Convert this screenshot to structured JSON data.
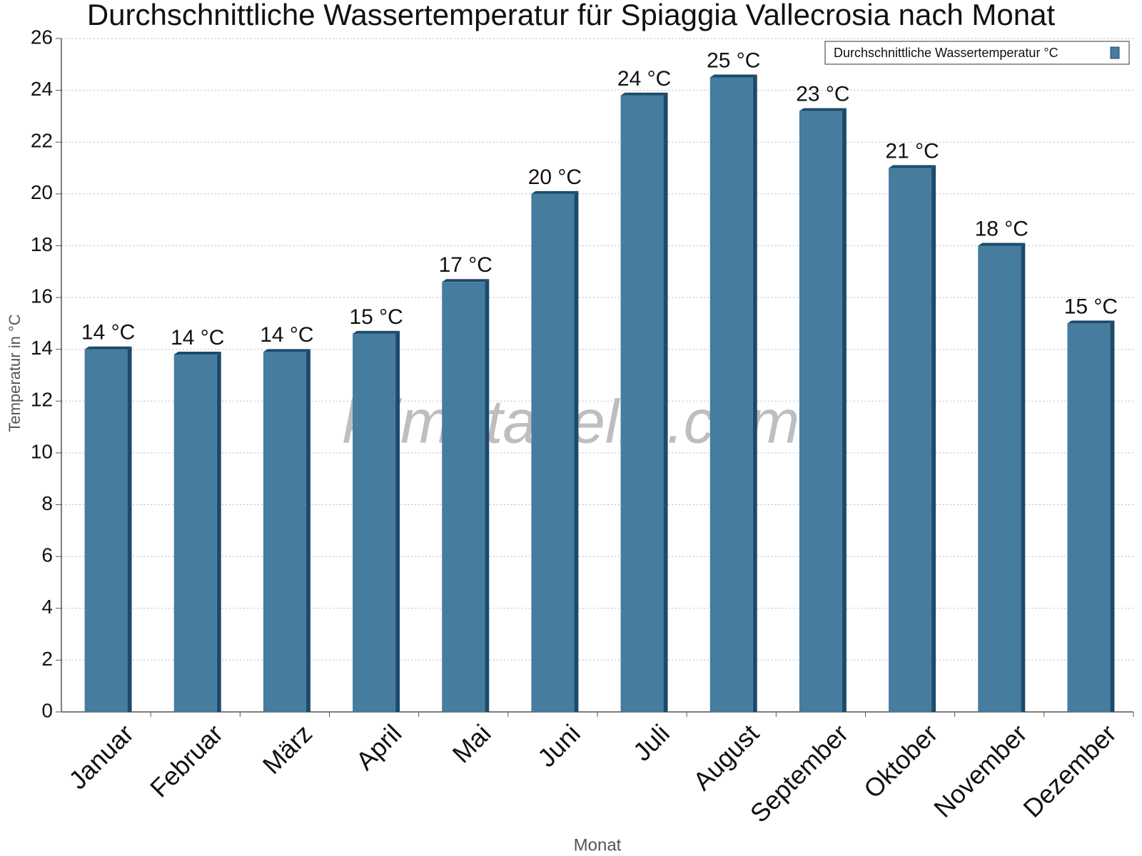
{
  "chart_data": {
    "type": "bar",
    "title": "Durchschnittliche Wassertemperatur für Spiaggia Vallecrosia nach Monat",
    "x_label": "Monat",
    "y_label": "Temperatur in °C",
    "watermark": "klimatabelle.com",
    "categories": [
      "Januar",
      "Februar",
      "März",
      "April",
      "Mai",
      "Juni",
      "Juli",
      "August",
      "September",
      "Oktober",
      "November",
      "Dezember"
    ],
    "series": [
      {
        "name": "Durchschnittliche Wassertemperatur °C",
        "color": "#467c9e",
        "values": [
          14.0,
          13.8,
          13.9,
          14.6,
          16.6,
          20.0,
          23.8,
          24.5,
          23.2,
          21.0,
          18.0,
          15.0
        ],
        "value_labels": [
          "14 °C",
          "14 °C",
          "14 °C",
          "15 °C",
          "17 °C",
          "20 °C",
          "24 °C",
          "25 °C",
          "23 °C",
          "21 °C",
          "18 °C",
          "15 °C"
        ]
      }
    ],
    "ylim": [
      0,
      26
    ],
    "yticks": [
      0,
      2,
      4,
      6,
      8,
      10,
      12,
      14,
      16,
      18,
      20,
      22,
      24,
      26
    ],
    "grid": true,
    "legend": "top-right"
  }
}
